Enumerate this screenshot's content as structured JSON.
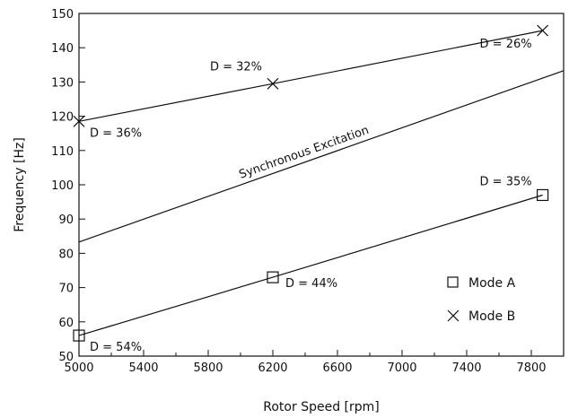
{
  "chart_data": {
    "type": "line",
    "xlabel": "Rotor Speed [rpm]",
    "ylabel": "Frequency [Hz]",
    "xlim": [
      5000,
      8000
    ],
    "ylim": [
      50,
      150
    ],
    "x_ticks": [
      5000,
      5400,
      5800,
      6200,
      6600,
      7000,
      7400,
      7800
    ],
    "x_minor_step": 200,
    "y_ticks": [
      50,
      60,
      70,
      80,
      90,
      100,
      110,
      120,
      130,
      140,
      150
    ],
    "grid": false,
    "legend_position": "right",
    "series": [
      {
        "name": "Mode A",
        "marker": "square",
        "x": [
          5000,
          6200,
          7870
        ],
        "y": [
          56,
          73,
          97
        ],
        "labels": [
          "D = 54%",
          "D = 44%",
          "D = 35%"
        ]
      },
      {
        "name": "Mode B",
        "marker": "x",
        "x": [
          5000,
          6200,
          7870
        ],
        "y": [
          118.5,
          129.5,
          145
        ],
        "labels": [
          "D = 36%",
          "D = 32%",
          "D = 26%"
        ]
      }
    ],
    "reference_line": {
      "label": "Synchronous Excitation",
      "x": [
        5000,
        8000
      ],
      "y": [
        83.3,
        133.3
      ]
    }
  }
}
